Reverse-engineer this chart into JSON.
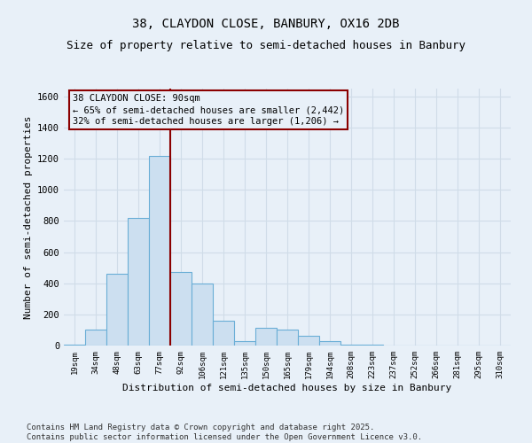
{
  "title1": "38, CLAYDON CLOSE, BANBURY, OX16 2DB",
  "title2": "Size of property relative to semi-detached houses in Banbury",
  "xlabel": "Distribution of semi-detached houses by size in Banbury",
  "ylabel": "Number of semi-detached properties",
  "categories": [
    "19sqm",
    "34sqm",
    "48sqm",
    "63sqm",
    "77sqm",
    "92sqm",
    "106sqm",
    "121sqm",
    "135sqm",
    "150sqm",
    "165sqm",
    "179sqm",
    "194sqm",
    "208sqm",
    "223sqm",
    "237sqm",
    "252sqm",
    "266sqm",
    "281sqm",
    "295sqm",
    "310sqm"
  ],
  "values": [
    5,
    100,
    460,
    820,
    1220,
    470,
    400,
    160,
    30,
    115,
    100,
    60,
    30,
    5,
    5,
    2,
    1,
    0,
    0,
    0,
    0
  ],
  "bar_color": "#ccdff0",
  "bar_edge_color": "#6aaed6",
  "vline_x": 4.5,
  "vline_color": "#8b0000",
  "property_label": "38 CLAYDON CLOSE: 90sqm",
  "annotation_left": "← 65% of semi-detached houses are smaller (2,442)",
  "annotation_right": "32% of semi-detached houses are larger (1,206) →",
  "annotation_box_color": "#8b0000",
  "ylim": [
    0,
    1650
  ],
  "yticks": [
    0,
    200,
    400,
    600,
    800,
    1000,
    1200,
    1400,
    1600
  ],
  "footer": "Contains HM Land Registry data © Crown copyright and database right 2025.\nContains public sector information licensed under the Open Government Licence v3.0.",
  "bg_color": "#e8f0f8",
  "grid_color": "#d0dce8",
  "title_fontsize": 10,
  "subtitle_fontsize": 9,
  "annotation_fontsize": 7.5,
  "footer_fontsize": 6.5,
  "ylabel_fontsize": 8,
  "xlabel_fontsize": 8
}
